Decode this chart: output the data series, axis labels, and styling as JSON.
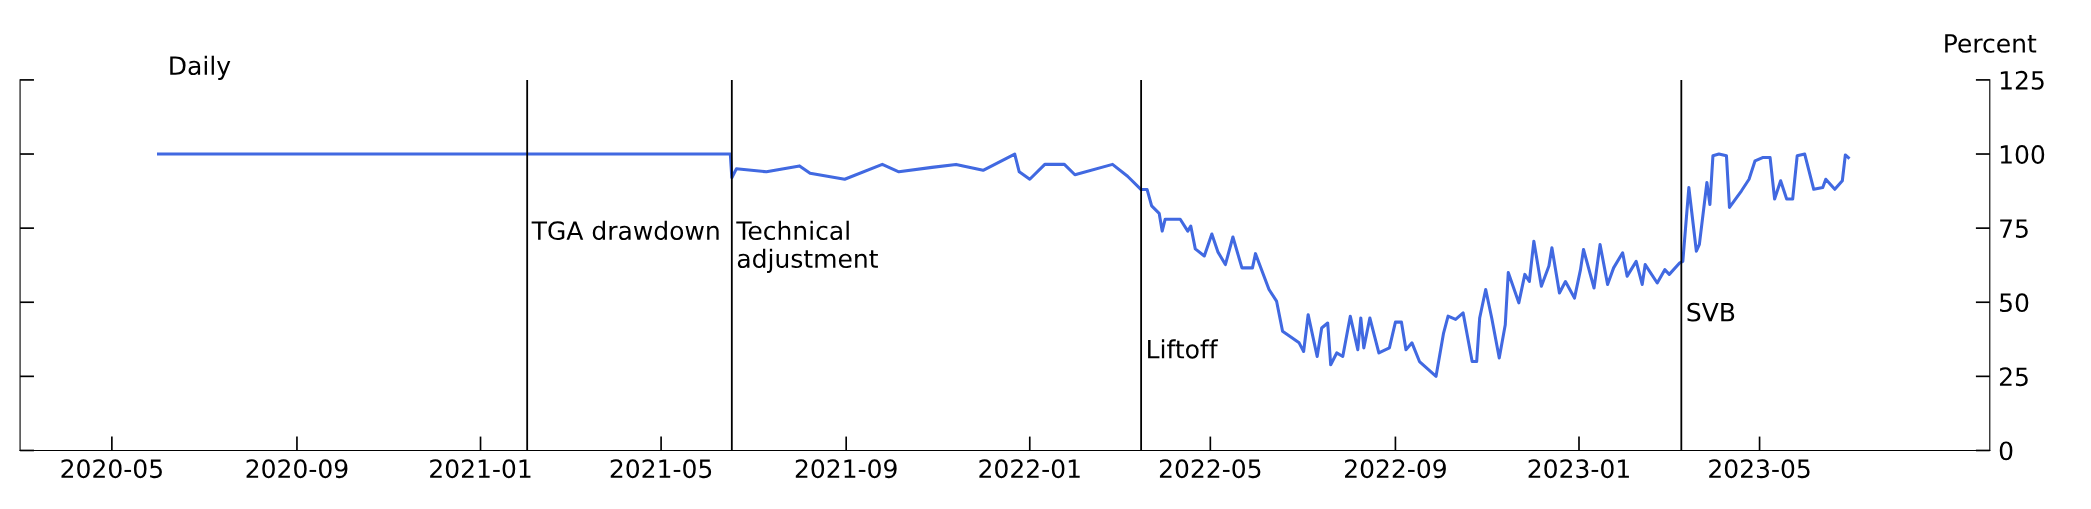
{
  "chart_data": {
    "type": "line",
    "annotations": [
      "Daily"
    ],
    "ylabel": "Percent",
    "xlim": [
      "2020-03-01",
      "2023-10-01"
    ],
    "xticks": [
      {
        "value": "2020-05-01",
        "label": "2020-05"
      },
      {
        "value": "2020-09-01",
        "label": "2020-09"
      },
      {
        "value": "2021-01-01",
        "label": "2021-01"
      },
      {
        "value": "2021-05-01",
        "label": "2021-05"
      },
      {
        "value": "2021-09-01",
        "label": "2021-09"
      },
      {
        "value": "2022-01-01",
        "label": "2022-01"
      },
      {
        "value": "2022-05-01",
        "label": "2022-05"
      },
      {
        "value": "2022-09-01",
        "label": "2022-09"
      },
      {
        "value": "2023-01-01",
        "label": "2023-01"
      },
      {
        "value": "2023-05-01",
        "label": "2023-05"
      }
    ],
    "ylim": [
      0,
      125
    ],
    "yticks": [
      0,
      25,
      50,
      75,
      100,
      125
    ],
    "grid": false,
    "ref_lines": [
      {
        "axis": "x",
        "value": "2021-02-01",
        "label": "TGA drawdown",
        "color": "#000000"
      },
      {
        "axis": "x",
        "value": "2021-06-17",
        "label": "Technical\nadjustment",
        "color": "#000000"
      },
      {
        "axis": "x",
        "value": "2022-03-16",
        "label": "Liftoff",
        "color": "#000000"
      },
      {
        "axis": "x",
        "value": "2023-03-10",
        "label": "SVB",
        "color": "#000000"
      }
    ],
    "series": [
      {
        "color": "#4169e1",
        "x": [
          "2020-06-01",
          "2021-06-16",
          "2021-06-17",
          "2021-06-20",
          "2021-07-10",
          "2021-08-01",
          "2021-08-08",
          "2021-08-31",
          "2021-09-25",
          "2021-10-06",
          "2021-10-28",
          "2021-11-13",
          "2021-12-01",
          "2021-12-22",
          "2021-12-25",
          "2022-01-01",
          "2022-01-11",
          "2022-01-24",
          "2022-01-31",
          "2022-02-25",
          "2022-03-07",
          "2022-03-16",
          "2022-03-20",
          "2022-03-23",
          "2022-03-28",
          "2022-03-30",
          "2022-04-01",
          "2022-04-11",
          "2022-04-16",
          "2022-04-18",
          "2022-04-21",
          "2022-04-27",
          "2022-05-02",
          "2022-05-06",
          "2022-05-11",
          "2022-05-16",
          "2022-05-22",
          "2022-05-29",
          "2022-05-31",
          "2022-06-09",
          "2022-06-14",
          "2022-06-18",
          "2022-06-29",
          "2022-07-02",
          "2022-07-05",
          "2022-07-11",
          "2022-07-14",
          "2022-07-18",
          "2022-07-20",
          "2022-07-24",
          "2022-07-28",
          "2022-08-02",
          "2022-08-07",
          "2022-08-09",
          "2022-08-11",
          "2022-08-15",
          "2022-08-21",
          "2022-08-28",
          "2022-09-01",
          "2022-09-05",
          "2022-09-08",
          "2022-09-12",
          "2022-09-17",
          "2022-09-28",
          "2022-10-03",
          "2022-10-06",
          "2022-10-11",
          "2022-10-16",
          "2022-10-22",
          "2022-10-25",
          "2022-10-27",
          "2022-10-31",
          "2022-11-04",
          "2022-11-09",
          "2022-11-13",
          "2022-11-15",
          "2022-11-22",
          "2022-11-26",
          "2022-11-29",
          "2022-12-02",
          "2022-12-07",
          "2022-12-12",
          "2022-12-14",
          "2022-12-19",
          "2022-12-23",
          "2022-12-29",
          "2023-01-02",
          "2023-01-04",
          "2023-01-11",
          "2023-01-15",
          "2023-01-20",
          "2023-01-24",
          "2023-01-30",
          "2023-02-02",
          "2023-02-08",
          "2023-02-12",
          "2023-02-14",
          "2023-02-22",
          "2023-02-27",
          "2023-03-02",
          "2023-03-09",
          "2023-03-11",
          "2023-03-15",
          "2023-03-20",
          "2023-03-22",
          "2023-03-27",
          "2023-03-29",
          "2023-03-31",
          "2023-04-04",
          "2023-04-09",
          "2023-04-11",
          "2023-04-15",
          "2023-04-19",
          "2023-04-24",
          "2023-04-28",
          "2023-05-03",
          "2023-05-08",
          "2023-05-11",
          "2023-05-15",
          "2023-05-19",
          "2023-05-23",
          "2023-05-26",
          "2023-05-31",
          "2023-06-06",
          "2023-06-12",
          "2023-06-14",
          "2023-06-20",
          "2023-06-25",
          "2023-06-27",
          "2023-06-29"
        ],
        "values": [
          100,
          100,
          92,
          95,
          94,
          96,
          93.5,
          91.5,
          96.5,
          94,
          95.5,
          96.5,
          94.5,
          100,
          94,
          91.5,
          96.5,
          96.5,
          93,
          96.5,
          92.5,
          88,
          88,
          82.5,
          80,
          74,
          78,
          78,
          74,
          75.7,
          68,
          65.6,
          73,
          67,
          62.7,
          72,
          61.6,
          61.6,
          66.4,
          54.3,
          50.4,
          40.2,
          36.3,
          33.4,
          45.8,
          31.7,
          41.3,
          43,
          28.9,
          32.9,
          31.7,
          45.3,
          34,
          44.7,
          34.6,
          44.7,
          32.9,
          34.6,
          43.3,
          43.3,
          34,
          36.3,
          30,
          25,
          39.6,
          45.3,
          44.2,
          46.4,
          30,
          30,
          44.7,
          54.3,
          44.7,
          31.2,
          42.4,
          60,
          49.8,
          59.4,
          57,
          70.6,
          55.4,
          62.2,
          68.4,
          53.1,
          57,
          51.4,
          61,
          67.8,
          54.8,
          69.5,
          56,
          61.6,
          66.7,
          58.8,
          63.8,
          56,
          62.7,
          56.5,
          61,
          59.4,
          63.3,
          63.8,
          88.7,
          67.2,
          69.5,
          90.4,
          83,
          99.4,
          100,
          99.4,
          82,
          84.8,
          87.6,
          91.5,
          97.7,
          98.8,
          98.8,
          84.8,
          91,
          84.8,
          84.8,
          99.4,
          100,
          88.1,
          88.7,
          91.5,
          88.1,
          91,
          99.7,
          98.8
        ]
      }
    ]
  }
}
